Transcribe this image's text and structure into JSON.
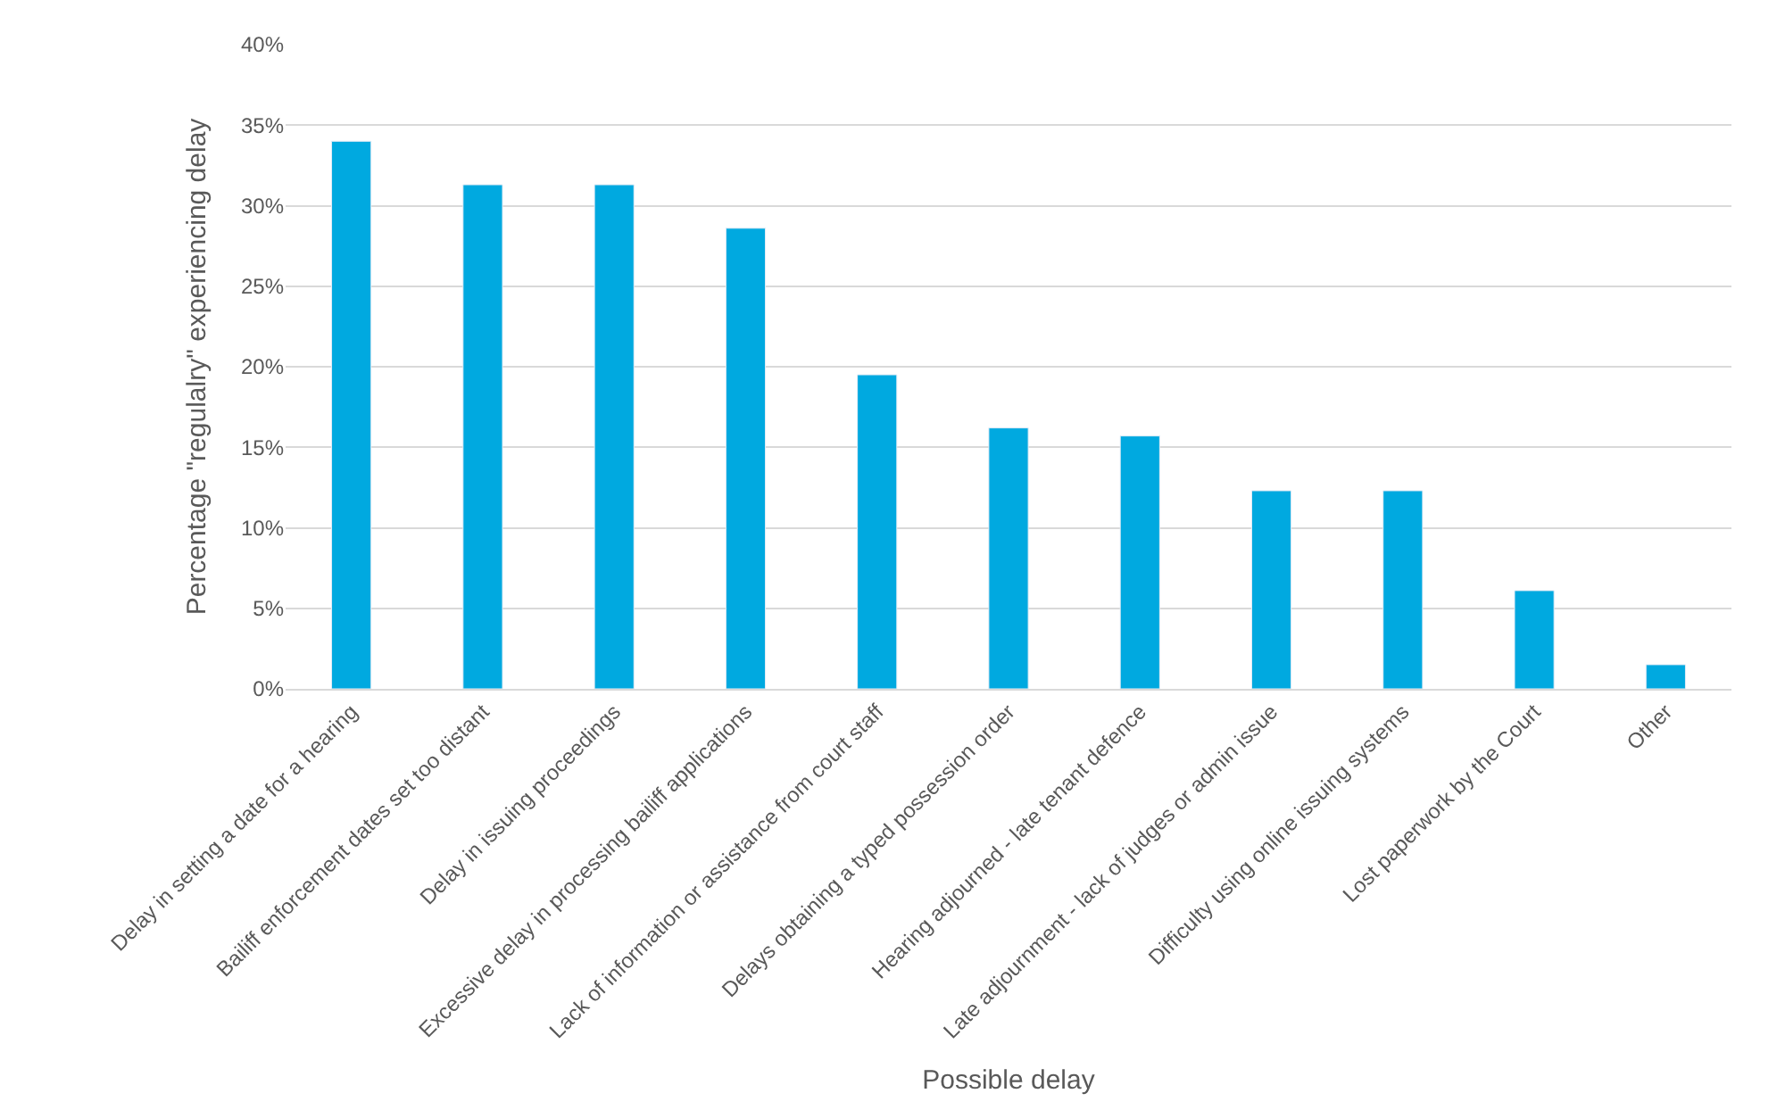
{
  "chart_data": {
    "type": "bar",
    "xlabel": "Possible delay",
    "ylabel": "Percentage \"regulalry\" experiencing delay",
    "categories": [
      "Delay in setting a date for a hearing",
      "Bailiff enforcement dates set too distant",
      "Delay in issuing proceedings",
      "Excessive delay in processing bailiff applications",
      "Lack of information or assistance from court staff",
      "Delays obtaining a typed possession order",
      "Hearing adjourned - late tenant defence",
      "Late adjournment - lack of judges or admin issue",
      "Difficulty using online issuing systems",
      "Lost paperwork by the Court",
      "Other"
    ],
    "values": [
      34.0,
      31.3,
      31.3,
      28.6,
      19.5,
      16.2,
      15.7,
      12.3,
      12.3,
      6.1,
      1.5
    ],
    "color": "#00a9e0",
    "ylim": [
      0,
      40
    ],
    "yticks": [
      {
        "value": 0,
        "label": "0%"
      },
      {
        "value": 5,
        "label": "5%"
      },
      {
        "value": 10,
        "label": "10%"
      },
      {
        "value": 15,
        "label": "15%"
      },
      {
        "value": 20,
        "label": "20%"
      },
      {
        "value": 25,
        "label": "25%"
      },
      {
        "value": 30,
        "label": "30%"
      },
      {
        "value": 35,
        "label": "35%"
      },
      {
        "value": 40,
        "label": "40%"
      }
    ],
    "grid": "y"
  }
}
